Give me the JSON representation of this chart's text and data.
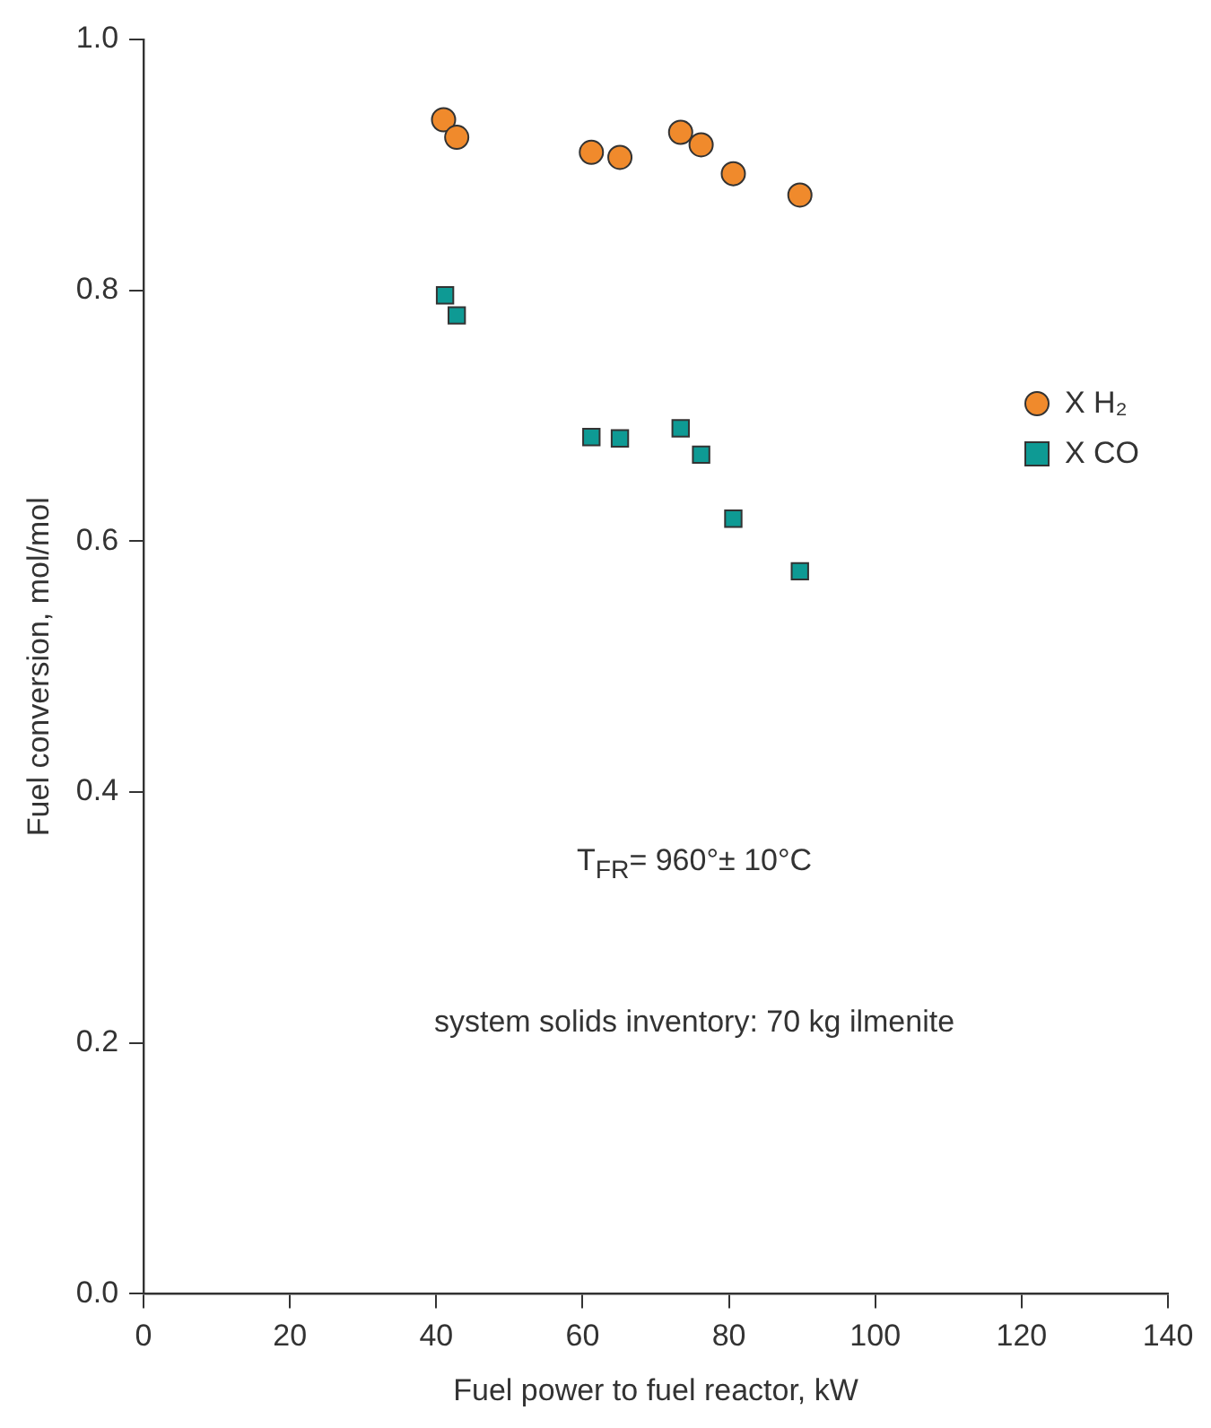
{
  "chart_data": {
    "type": "scatter",
    "xlabel": "Fuel power to fuel reactor, kW",
    "ylabel": "Fuel conversion, mol/mol",
    "xlim": [
      0,
      140
    ],
    "xticks": [
      0,
      20,
      40,
      60,
      80,
      100,
      120,
      140
    ],
    "ylim": [
      0,
      1
    ],
    "yticks": [
      {
        "value": 0,
        "label": "0.0"
      },
      0.2,
      0.4,
      0.6,
      0.8,
      {
        "value": 1,
        "label": "1.0"
      }
    ],
    "grid": false,
    "legend": "right",
    "series": [
      {
        "name": "X H₂",
        "color": "#f08a2c",
        "marker": "circle",
        "x": [
          41.0,
          42.8,
          61.2,
          65.1,
          73.4,
          76.2,
          80.6,
          89.7
        ],
        "values": [
          0.936,
          0.922,
          0.91,
          0.906,
          0.926,
          0.916,
          0.893,
          0.876
        ]
      },
      {
        "name": "X CO",
        "color": "#0e9a94",
        "marker": "square",
        "x": [
          41.2,
          42.8,
          61.2,
          65.1,
          73.4,
          76.2,
          80.6,
          89.7
        ],
        "values": [
          0.796,
          0.78,
          0.683,
          0.682,
          0.69,
          0.669,
          0.618,
          0.576
        ]
      }
    ],
    "annotations": [
      "T$_{FR}$= 960°± 10°C",
      "system solids inventory: 70 kg ilmenite"
    ]
  }
}
